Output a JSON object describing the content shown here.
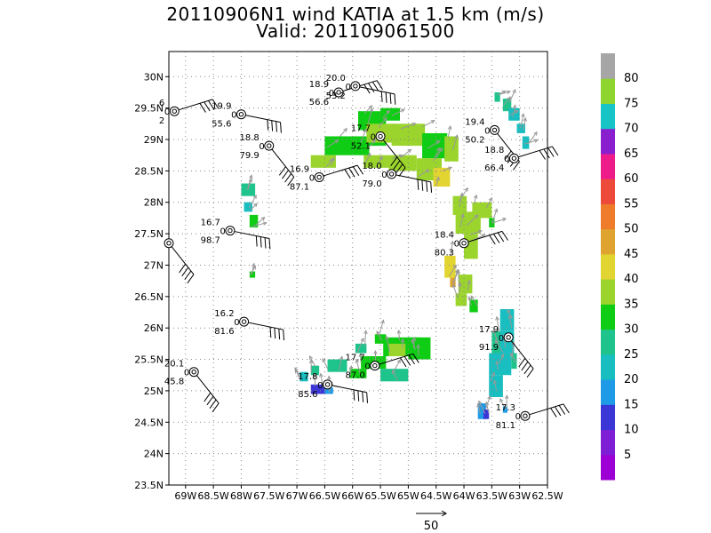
{
  "chart_data": {
    "type": "heatmap",
    "title": "20110906N1 wind KATIA at 1.5 km (m/s)",
    "subtitle": "Valid: 201109061500",
    "x_ticks": [
      "69W",
      "68.5W",
      "68W",
      "67.5W",
      "67W",
      "66.5W",
      "66W",
      "65.5W",
      "65W",
      "64.5W",
      "64W",
      "63.5W",
      "63W",
      "62.5W"
    ],
    "y_ticks": [
      "30N",
      "29.5N",
      "29N",
      "28.5N",
      "28N",
      "27.5N",
      "27N",
      "26.5N",
      "26N",
      "25.5N",
      "25N",
      "24.5N",
      "24N",
      "23.5N"
    ],
    "xlim": [
      -69.3,
      -62.5
    ],
    "ylim": [
      23.5,
      30.4
    ],
    "grid": true,
    "colorbar": {
      "ticks": [
        "5",
        "10",
        "15",
        "20",
        "25",
        "30",
        "35",
        "40",
        "45",
        "50",
        "55",
        "60",
        "65",
        "70",
        "75",
        "80"
      ],
      "colors": [
        "#9d00d4",
        "#7e1fd6",
        "#3b36d6",
        "#1e9ae6",
        "#19bec0",
        "#1fc48d",
        "#0fcc14",
        "#9ad42c",
        "#e3d531",
        "#dea42f",
        "#ee7c2b",
        "#ee4a3c",
        "#ee1c8a",
        "#8a1fcf",
        "#17c5c7",
        "#8ed52f",
        "#a6a6a6"
      ]
    },
    "stations": [
      {
        "lon": -69.2,
        "lat": 29.45,
        "labels": [
          "6",
          "0",
          "2"
        ],
        "cut": true
      },
      {
        "lon": -68.0,
        "lat": 29.4,
        "labels": [
          "19.9",
          "0",
          "55.6"
        ]
      },
      {
        "lon": -67.5,
        "lat": 28.9,
        "labels": [
          "18.8",
          "0",
          "79.9"
        ]
      },
      {
        "lon": -66.25,
        "lat": 29.75,
        "labels": [
          "18.9",
          "0",
          "56.6"
        ]
      },
      {
        "lon": -65.95,
        "lat": 29.85,
        "labels": [
          "20.0",
          "0",
          "53.2"
        ]
      },
      {
        "lon": -65.5,
        "lat": 29.05,
        "labels": [
          "17.7",
          "0",
          "52.1"
        ]
      },
      {
        "lon": -66.6,
        "lat": 28.4,
        "labels": [
          "16.9",
          "0",
          "87.1"
        ]
      },
      {
        "lon": -65.3,
        "lat": 28.45,
        "labels": [
          "18.0",
          "0",
          "79.0"
        ]
      },
      {
        "lon": -63.45,
        "lat": 29.15,
        "labels": [
          "19.4",
          "0",
          "50.2"
        ]
      },
      {
        "lon": -63.1,
        "lat": 28.7,
        "labels": [
          "18.8",
          "0",
          "66.4"
        ]
      },
      {
        "lon": -68.2,
        "lat": 27.55,
        "labels": [
          "16.7",
          "0",
          "98.7"
        ]
      },
      {
        "lon": -69.3,
        "lat": 27.35,
        "labels": [
          "",
          "",
          ""
        ],
        "cut": true
      },
      {
        "lon": -64.0,
        "lat": 27.35,
        "labels": [
          "18.4",
          "0",
          "80.3"
        ]
      },
      {
        "lon": -67.95,
        "lat": 26.1,
        "labels": [
          "16.2",
          "0",
          "81.6"
        ]
      },
      {
        "lon": -63.2,
        "lat": 25.85,
        "labels": [
          "17.9",
          "0",
          "91.9"
        ]
      },
      {
        "lon": -65.6,
        "lat": 25.4,
        "labels": [
          "17.7",
          "0",
          "87.0"
        ]
      },
      {
        "lon": -66.45,
        "lat": 25.1,
        "labels": [
          "17.8",
          "0",
          "85.6"
        ]
      },
      {
        "lon": -68.85,
        "lat": 25.3,
        "labels": [
          "20.1",
          "0",
          "45.8"
        ]
      },
      {
        "lon": -62.9,
        "lat": 24.6,
        "labels": [
          "17.3",
          "0",
          "81.1"
        ]
      }
    ],
    "cells": [
      {
        "lon": -68.0,
        "lat": 28.1,
        "w": 0.25,
        "h": 0.2,
        "v": 25
      },
      {
        "lon": -67.95,
        "lat": 27.85,
        "w": 0.15,
        "h": 0.15,
        "v": 22
      },
      {
        "lon": -67.85,
        "lat": 27.6,
        "w": 0.15,
        "h": 0.2,
        "v": 30
      },
      {
        "lon": -67.85,
        "lat": 26.8,
        "w": 0.1,
        "h": 0.1,
        "v": 30
      },
      {
        "lon": -66.4,
        "lat": 28.9,
        "w": 1.0,
        "h": 0.15,
        "v": 30
      },
      {
        "lon": -65.9,
        "lat": 29.15,
        "w": 0.5,
        "h": 0.3,
        "v": 30
      },
      {
        "lon": -65.5,
        "lat": 29.3,
        "w": 0.35,
        "h": 0.2,
        "v": 30
      },
      {
        "lon": -66.5,
        "lat": 28.75,
        "w": 0.8,
        "h": 0.3,
        "v": 33
      },
      {
        "lon": -65.75,
        "lat": 28.95,
        "w": 0.5,
        "h": 0.3,
        "v": 35
      },
      {
        "lon": -65.3,
        "lat": 28.9,
        "w": 0.6,
        "h": 0.35,
        "v": 35
      },
      {
        "lon": -64.75,
        "lat": 28.7,
        "w": 0.45,
        "h": 0.4,
        "v": 32
      },
      {
        "lon": -64.35,
        "lat": 28.65,
        "w": 0.25,
        "h": 0.4,
        "v": 35
      },
      {
        "lon": -65.35,
        "lat": 28.5,
        "w": 0.5,
        "h": 0.25,
        "v": 35
      },
      {
        "lon": -64.85,
        "lat": 28.35,
        "w": 0.45,
        "h": 0.35,
        "v": 36
      },
      {
        "lon": -64.55,
        "lat": 28.25,
        "w": 0.3,
        "h": 0.3,
        "v": 40
      },
      {
        "lon": -65.8,
        "lat": 28.55,
        "w": 0.45,
        "h": 0.2,
        "v": 36
      },
      {
        "lon": -66.75,
        "lat": 28.55,
        "w": 0.45,
        "h": 0.2,
        "v": 36
      },
      {
        "lon": -64.2,
        "lat": 27.8,
        "w": 0.25,
        "h": 0.3,
        "v": 35
      },
      {
        "lon": -63.85,
        "lat": 27.75,
        "w": 0.35,
        "h": 0.25,
        "v": 38
      },
      {
        "lon": -64.15,
        "lat": 27.5,
        "w": 0.45,
        "h": 0.35,
        "v": 38
      },
      {
        "lon": -63.55,
        "lat": 27.6,
        "w": 0.1,
        "h": 0.15,
        "v": 30
      },
      {
        "lon": -64.0,
        "lat": 27.1,
        "w": 0.25,
        "h": 0.4,
        "v": 38
      },
      {
        "lon": -64.35,
        "lat": 26.8,
        "w": 0.2,
        "h": 0.35,
        "v": 40
      },
      {
        "lon": -64.25,
        "lat": 26.65,
        "w": 0.1,
        "h": 0.15,
        "v": 48
      },
      {
        "lon": -64.1,
        "lat": 26.55,
        "w": 0.25,
        "h": 0.3,
        "v": 35
      },
      {
        "lon": -63.9,
        "lat": 26.25,
        "w": 0.15,
        "h": 0.2,
        "v": 30
      },
      {
        "lon": -64.15,
        "lat": 26.35,
        "w": 0.2,
        "h": 0.2,
        "v": 38
      },
      {
        "lon": -63.35,
        "lat": 25.95,
        "w": 0.25,
        "h": 0.35,
        "v": 22
      },
      {
        "lon": -63.4,
        "lat": 25.6,
        "w": 0.3,
        "h": 0.35,
        "v": 22
      },
      {
        "lon": -63.55,
        "lat": 25.25,
        "w": 0.4,
        "h": 0.35,
        "v": 20
      },
      {
        "lon": -63.55,
        "lat": 24.9,
        "w": 0.25,
        "h": 0.35,
        "v": 22
      },
      {
        "lon": -63.5,
        "lat": 25.6,
        "w": 0.15,
        "h": 0.35,
        "v": 27
      },
      {
        "lon": -63.15,
        "lat": 25.35,
        "w": 0.1,
        "h": 0.25,
        "v": 26
      },
      {
        "lon": -63.75,
        "lat": 24.55,
        "w": 0.15,
        "h": 0.25,
        "v": 15
      },
      {
        "lon": -63.65,
        "lat": 24.55,
        "w": 0.1,
        "h": 0.15,
        "v": 14
      },
      {
        "lon": -63.3,
        "lat": 24.65,
        "w": 0.08,
        "h": 0.1,
        "v": 15
      },
      {
        "lon": -65.6,
        "lat": 25.75,
        "w": 0.2,
        "h": 0.15,
        "v": 30
      },
      {
        "lon": -65.45,
        "lat": 25.55,
        "w": 0.65,
        "h": 0.3,
        "v": 30
      },
      {
        "lon": -65.35,
        "lat": 25.55,
        "w": 0.3,
        "h": 0.2,
        "v": 35
      },
      {
        "lon": -65.0,
        "lat": 25.5,
        "w": 0.4,
        "h": 0.35,
        "v": 30
      },
      {
        "lon": -65.85,
        "lat": 25.35,
        "w": 0.45,
        "h": 0.2,
        "v": 30
      },
      {
        "lon": -65.5,
        "lat": 25.15,
        "w": 0.5,
        "h": 0.2,
        "v": 27
      },
      {
        "lon": -65.95,
        "lat": 25.6,
        "w": 0.2,
        "h": 0.15,
        "v": 27
      },
      {
        "lon": -66.05,
        "lat": 25.2,
        "w": 0.3,
        "h": 0.15,
        "v": 30
      },
      {
        "lon": -66.45,
        "lat": 25.3,
        "w": 0.35,
        "h": 0.2,
        "v": 28
      },
      {
        "lon": -66.75,
        "lat": 25.25,
        "w": 0.15,
        "h": 0.15,
        "v": 25
      },
      {
        "lon": -66.95,
        "lat": 25.15,
        "w": 0.15,
        "h": 0.15,
        "v": 20
      },
      {
        "lon": -66.75,
        "lat": 24.95,
        "w": 0.25,
        "h": 0.15,
        "v": 13
      },
      {
        "lon": -66.5,
        "lat": 24.95,
        "w": 0.15,
        "h": 0.1,
        "v": 17
      },
      {
        "lon": -63.3,
        "lat": 29.45,
        "w": 0.15,
        "h": 0.2,
        "v": 25
      },
      {
        "lon": -63.2,
        "lat": 29.3,
        "w": 0.2,
        "h": 0.2,
        "v": 22
      },
      {
        "lon": -63.05,
        "lat": 29.1,
        "w": 0.15,
        "h": 0.15,
        "v": 22
      },
      {
        "lon": -63.45,
        "lat": 29.6,
        "w": 0.1,
        "h": 0.15,
        "v": 25
      },
      {
        "lon": -62.95,
        "lat": 28.85,
        "w": 0.12,
        "h": 0.2,
        "v": 22
      }
    ],
    "scale_arrow_label": "50"
  }
}
